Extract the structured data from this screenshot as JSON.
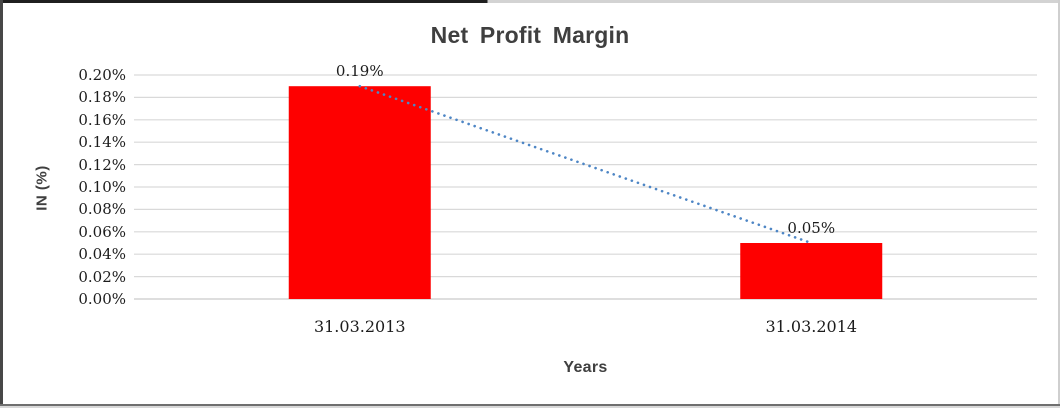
{
  "chart_data": {
    "type": "bar",
    "title": "Net Profit Margin",
    "xlabel": "Years",
    "ylabel": "IN (%)",
    "categories": [
      "31.03.2013",
      "31.03.2014"
    ],
    "values": [
      0.19,
      0.05
    ],
    "value_unit": "percent",
    "data_labels": [
      "0.19%",
      "0.05%"
    ],
    "ylim": [
      0,
      0.2
    ],
    "ytick_labels": [
      "0.20%",
      "0.18%",
      "0.16%",
      "0.14%",
      "0.12%",
      "0.10%",
      "0.08%",
      "0.06%",
      "0.04%",
      "0.02%",
      "0.00%"
    ],
    "grid": "horizontal",
    "legend": "none",
    "trendline": {
      "style": "dotted",
      "from": [
        0,
        0.19
      ],
      "to": [
        1,
        0.05
      ]
    },
    "colors": {
      "bar": "#fe0000",
      "trendline": "#4e86c5",
      "gridline": "#d9d9d9",
      "baseline": "#c9c9c9",
      "title_text": "#3f3f3f",
      "tick_text": "#1c1c1c"
    }
  }
}
